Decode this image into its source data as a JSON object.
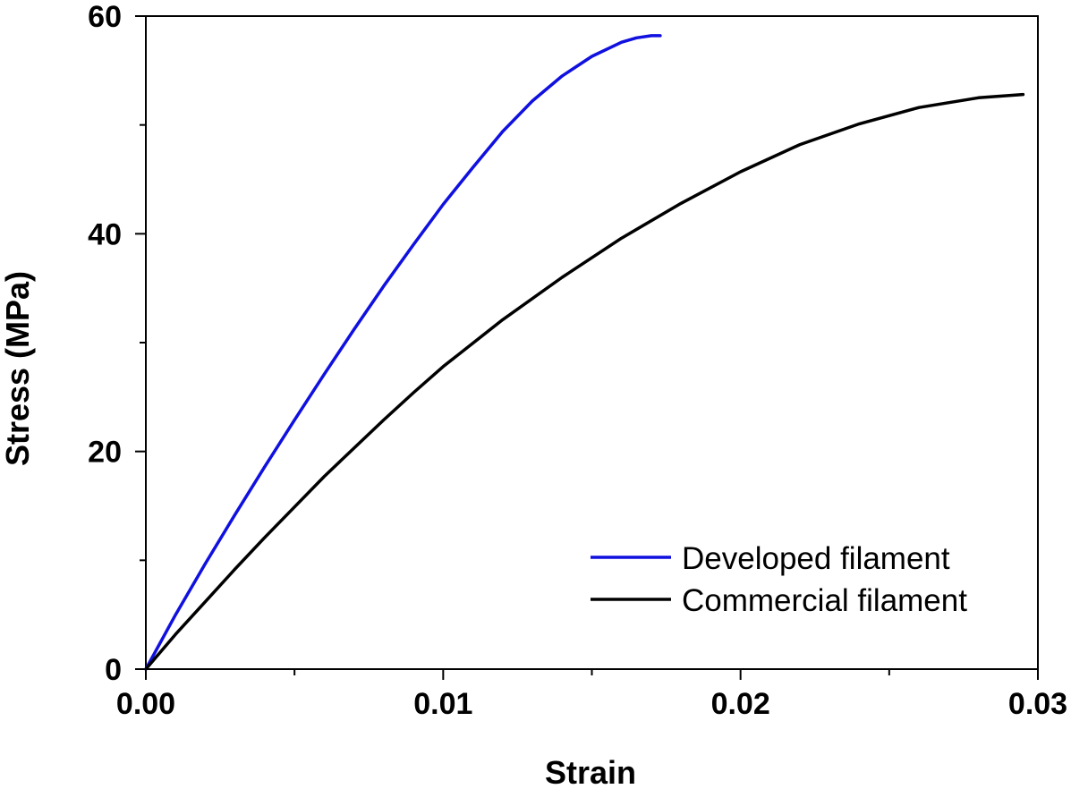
{
  "chart_data": {
    "type": "line",
    "title": "",
    "xlabel": "Strain",
    "ylabel": "Stress (MPa)",
    "xlim": [
      0,
      0.03
    ],
    "ylim": [
      0,
      60
    ],
    "xticks": [
      0,
      0.01,
      0.02,
      0.03
    ],
    "xtick_labels": [
      "0.00",
      "0.01",
      "0.02",
      "0.03"
    ],
    "xminor": [
      0.005,
      0.015,
      0.025
    ],
    "yticks": [
      0,
      20,
      40,
      60
    ],
    "ytick_labels": [
      "0",
      "20",
      "40",
      "60"
    ],
    "yminor": [
      10,
      30,
      50
    ],
    "grid": false,
    "legend_position": "bottom-right",
    "series": [
      {
        "name": "Developed filament",
        "color": "#1010e0",
        "x": [
          0,
          0.001,
          0.002,
          0.003,
          0.004,
          0.005,
          0.006,
          0.007,
          0.008,
          0.009,
          0.01,
          0.011,
          0.012,
          0.013,
          0.014,
          0.015,
          0.016,
          0.0165,
          0.017,
          0.0173
        ],
        "y": [
          0,
          5.0,
          9.7,
          14.2,
          18.6,
          22.9,
          27.1,
          31.2,
          35.2,
          39.0,
          42.7,
          46.1,
          49.4,
          52.2,
          54.5,
          56.3,
          57.6,
          58.0,
          58.2,
          58.2
        ]
      },
      {
        "name": "Commercial filament",
        "color": "#000000",
        "x": [
          0,
          0.001,
          0.002,
          0.003,
          0.004,
          0.005,
          0.006,
          0.007,
          0.008,
          0.009,
          0.01,
          0.012,
          0.014,
          0.016,
          0.018,
          0.02,
          0.022,
          0.024,
          0.026,
          0.028,
          0.0295
        ],
        "y": [
          0,
          3.2,
          6.2,
          9.2,
          12.1,
          14.9,
          17.7,
          20.3,
          22.9,
          25.4,
          27.8,
          32.1,
          36.0,
          39.6,
          42.8,
          45.7,
          48.2,
          50.1,
          51.6,
          52.5,
          52.8
        ]
      }
    ]
  }
}
